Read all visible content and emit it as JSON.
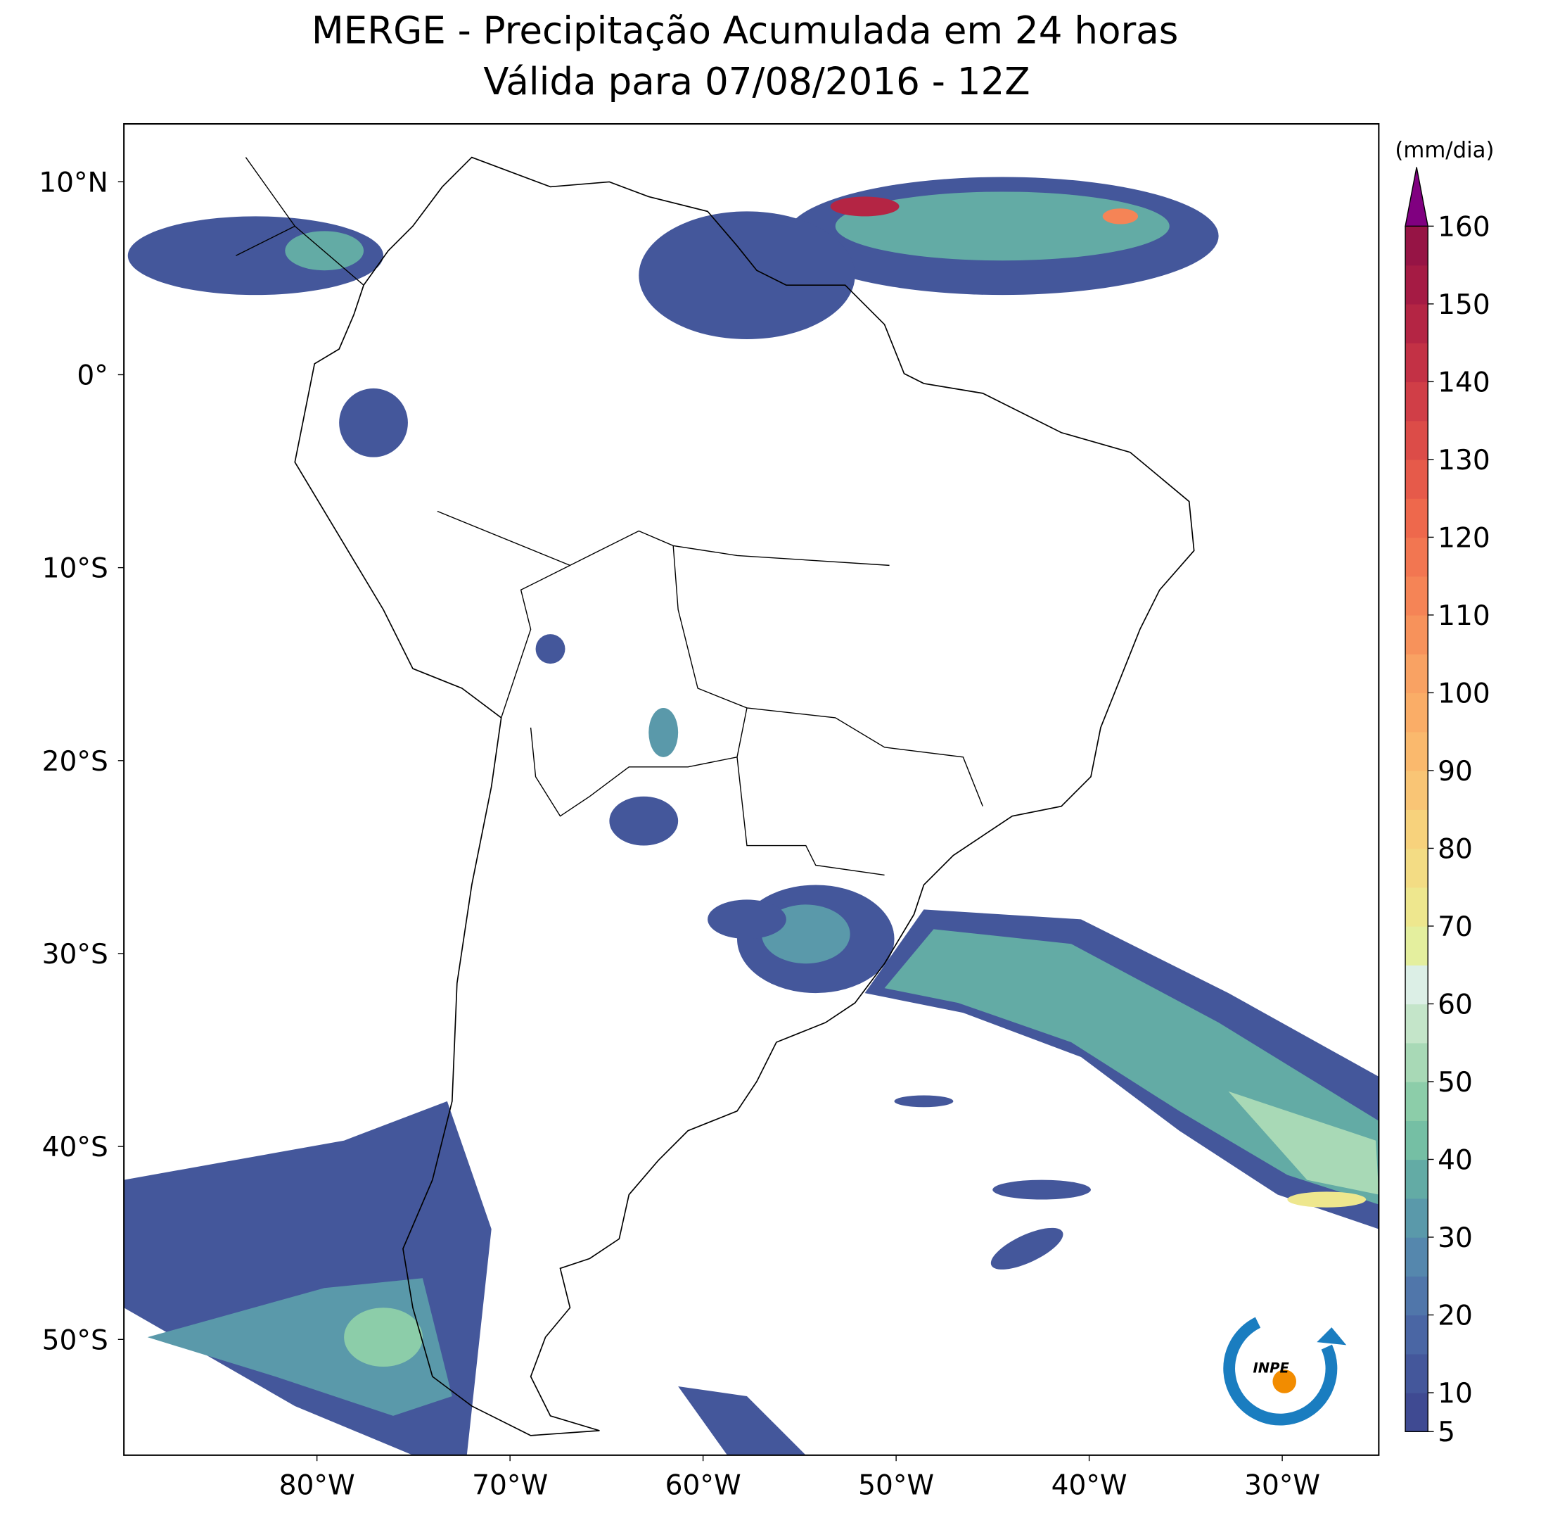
{
  "chart_data": {
    "type": "map",
    "title": "MERGE - Precipitação Acumulada em 24 horas",
    "subtitle": "Válida para 07/08/2016 - 12Z",
    "xlim": [
      -90,
      -25
    ],
    "ylim": [
      -56,
      13
    ],
    "xticks": [
      {
        "value": -80,
        "label": "80°W"
      },
      {
        "value": -70,
        "label": "70°W"
      },
      {
        "value": -60,
        "label": "60°W"
      },
      {
        "value": -50,
        "label": "50°W"
      },
      {
        "value": -40,
        "label": "40°W"
      },
      {
        "value": -30,
        "label": "30°W"
      }
    ],
    "yticks": [
      {
        "value": 10,
        "label": "10°N"
      },
      {
        "value": 0,
        "label": "0°"
      },
      {
        "value": -10,
        "label": "10°S"
      },
      {
        "value": -20,
        "label": "20°S"
      },
      {
        "value": -30,
        "label": "30°S"
      },
      {
        "value": -40,
        "label": "40°S"
      },
      {
        "value": -50,
        "label": "50°S"
      }
    ],
    "colorbar": {
      "label": "(mm/dia)",
      "levels": [
        5,
        10,
        15,
        20,
        25,
        30,
        35,
        40,
        45,
        50,
        55,
        60,
        65,
        70,
        75,
        80,
        85,
        90,
        95,
        100,
        105,
        110,
        115,
        120,
        125,
        130,
        135,
        140,
        145,
        150,
        155,
        160
      ],
      "colors": [
        "#3f4a92",
        "#44579b",
        "#4a66a4",
        "#5076aa",
        "#5587ad",
        "#5a99aa",
        "#63aba5",
        "#75bfa4",
        "#8ccda9",
        "#a8d9b6",
        "#c4e5c9",
        "#dcefe6",
        "#e4ef9e",
        "#eee78e",
        "#f3dc84",
        "#f7d27c",
        "#f9c575",
        "#fab96d",
        "#faad67",
        "#f9a263",
        "#f7925b",
        "#f58456",
        "#f27651",
        "#ee684c",
        "#e65a4a",
        "#dc4c48",
        "#d03e47",
        "#c33145",
        "#b42544",
        "#a51b44",
        "#961445"
      ],
      "extend_color": "#800080",
      "ticks": [
        5,
        10,
        20,
        30,
        40,
        50,
        60,
        70,
        80,
        90,
        100,
        110,
        120,
        130,
        140,
        150,
        160
      ]
    },
    "logo_text": "INPE"
  }
}
